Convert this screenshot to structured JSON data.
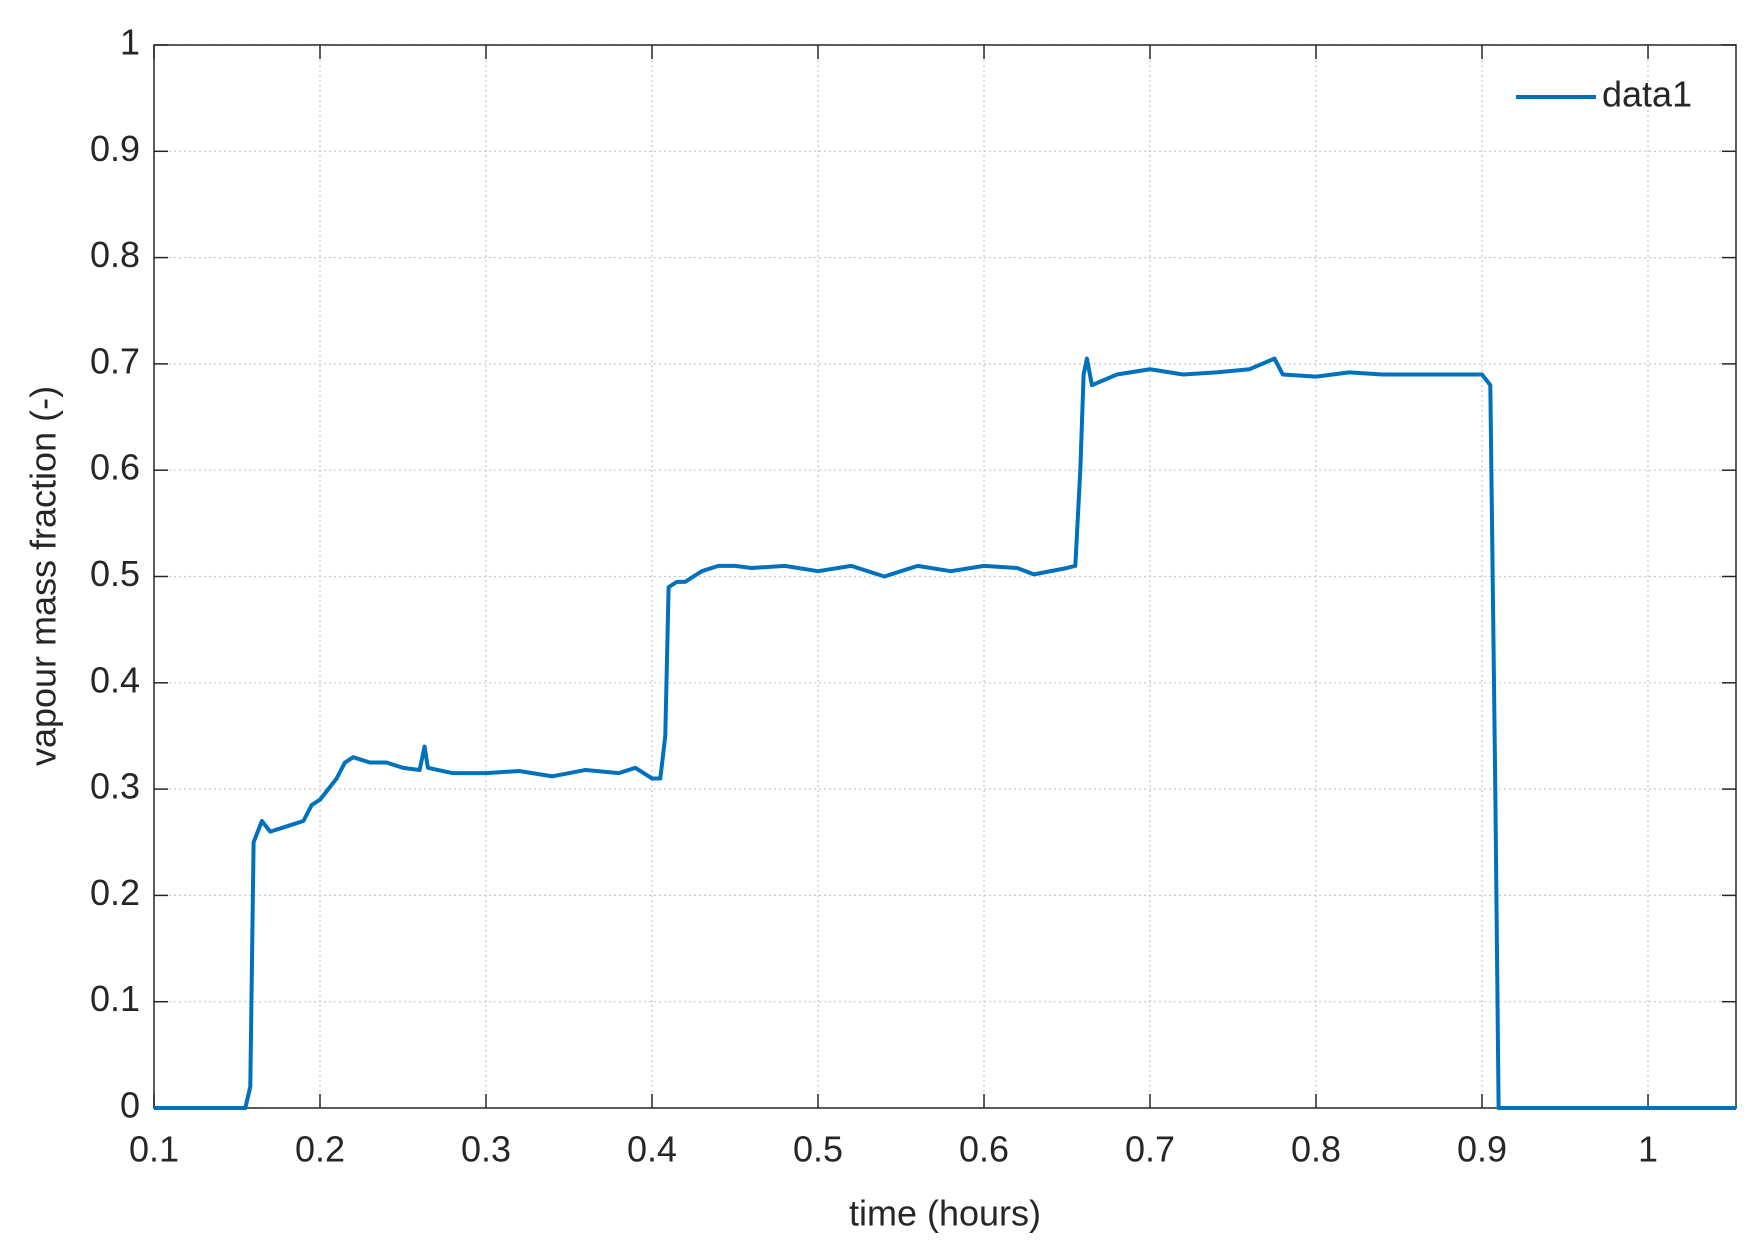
{
  "chart_data": {
    "type": "line",
    "xlabel": "time (hours)",
    "ylabel": "vapour mass fraction (-)",
    "xlim": [
      0.1,
      1.053
    ],
    "ylim": [
      0,
      1
    ],
    "xticks": [
      0.1,
      0.2,
      0.3,
      0.4,
      0.5,
      0.6,
      0.7,
      0.8,
      0.9,
      1
    ],
    "yticks": [
      0,
      0.1,
      0.2,
      0.3,
      0.4,
      0.5,
      0.6,
      0.7,
      0.8,
      0.9,
      1
    ],
    "grid": true,
    "legend": "upper right",
    "series": [
      {
        "name": "data1",
        "color": "#0072bd",
        "x": [
          0.1,
          0.155,
          0.158,
          0.16,
          0.165,
          0.17,
          0.18,
          0.19,
          0.195,
          0.2,
          0.205,
          0.21,
          0.215,
          0.22,
          0.23,
          0.24,
          0.25,
          0.26,
          0.263,
          0.265,
          0.28,
          0.3,
          0.32,
          0.34,
          0.36,
          0.38,
          0.39,
          0.4,
          0.405,
          0.408,
          0.41,
          0.415,
          0.42,
          0.43,
          0.44,
          0.45,
          0.46,
          0.48,
          0.5,
          0.52,
          0.54,
          0.56,
          0.58,
          0.6,
          0.62,
          0.63,
          0.65,
          0.655,
          0.658,
          0.66,
          0.662,
          0.665,
          0.68,
          0.7,
          0.72,
          0.74,
          0.76,
          0.775,
          0.78,
          0.8,
          0.82,
          0.84,
          0.86,
          0.88,
          0.9,
          0.905,
          0.908,
          0.91,
          1.053
        ],
        "values": [
          0,
          0,
          0.02,
          0.25,
          0.27,
          0.26,
          0.265,
          0.27,
          0.285,
          0.29,
          0.3,
          0.31,
          0.325,
          0.33,
          0.325,
          0.325,
          0.32,
          0.318,
          0.34,
          0.32,
          0.315,
          0.315,
          0.317,
          0.312,
          0.318,
          0.315,
          0.32,
          0.31,
          0.31,
          0.35,
          0.49,
          0.495,
          0.495,
          0.505,
          0.51,
          0.51,
          0.508,
          0.51,
          0.505,
          0.51,
          0.5,
          0.51,
          0.505,
          0.51,
          0.508,
          0.502,
          0.508,
          0.51,
          0.6,
          0.69,
          0.705,
          0.68,
          0.69,
          0.695,
          0.69,
          0.692,
          0.695,
          0.705,
          0.69,
          0.688,
          0.692,
          0.69,
          0.69,
          0.69,
          0.69,
          0.68,
          0.3,
          0,
          0
        ]
      }
    ]
  }
}
